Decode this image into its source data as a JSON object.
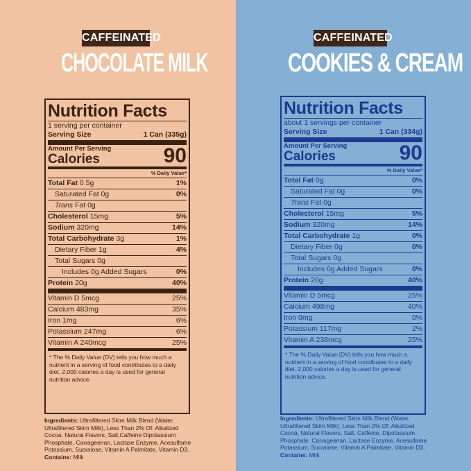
{
  "left": {
    "badge": "CAFFEINATED",
    "product": "CHOCOLATE MILK",
    "colors": {
      "background": "#f1c3a2",
      "text": "#3b2314"
    },
    "title": "Nutrition Facts",
    "servings_per_container": "1 serving per container",
    "serving_size_label": "Serving Size",
    "serving_size_value": "1 Can (335g)",
    "amount_per_serving": "Amount Per Serving",
    "calories_label": "Calories",
    "calories_value": "90",
    "dv_header": "% Daily Value*",
    "rows": [
      {
        "name": "Total Fat",
        "amount": "0.5g",
        "dv": "1%"
      },
      {
        "name": "Saturated Fat",
        "amount": "0g",
        "dv": "0%"
      },
      {
        "name": "Trans",
        "name_suffix": "Fat",
        "amount": "0g",
        "dv": ""
      },
      {
        "name": "Cholesterol",
        "amount": "15mg",
        "dv": "5%"
      },
      {
        "name": "Sodium",
        "amount": "320mg",
        "dv": "14%"
      },
      {
        "name": "Total Carbohydrate",
        "amount": "3g",
        "dv": "1%"
      },
      {
        "name": "Dietary Fiber",
        "amount": "1g",
        "dv": "4%"
      },
      {
        "name": "Total Sugars",
        "amount": "0g",
        "dv": ""
      },
      {
        "name": "Includes 0g Added Sugars",
        "amount": "",
        "dv": "0%"
      },
      {
        "name": "Protein",
        "amount": "20g",
        "dv": "40%"
      }
    ],
    "vitamins": [
      {
        "text": "Vitamin D 5mcg",
        "dv": "25%"
      },
      {
        "text": "Calcium 483mg",
        "dv": "35%"
      },
      {
        "text": "Iron 1mg",
        "dv": "6%"
      },
      {
        "text": "Potassium 247mg",
        "dv": "6%"
      },
      {
        "text": "Vitamin A 240mcg",
        "dv": "25%"
      }
    ],
    "footnote": "* The % Daily Value (DV) tells you how much a nutrient in a serving of food contributes to a daily diet. 2,000 calories a day is used for general nutrition advice.",
    "ingredients_label": "Ingredients:",
    "ingredients_text": "Ultrafiltered Skim Milk Blend (Water, Ultrafiltered Skim Milk), Less Than 2% Of: Alkalized Cocoa, Natural Flavors, Salt,Caffeine Dipotassium Phosphate, Carrageenan, Lactase Enzyme, Acesulfame Potassium, Sucralose, Vitamin A Palmitate, Vitamin D3.",
    "contains_label": "Contains:",
    "contains_text": "Milk"
  },
  "right": {
    "badge": "CAFFEINATED",
    "product": "COOKIES & CREAM",
    "colors": {
      "background": "#84b0d6",
      "text": "#1d3a8f"
    },
    "title": "Nutrition Facts",
    "servings_per_container": "about 1 servings per container",
    "serving_size_label": "Serving Size",
    "serving_size_value": "1 Can (334g)",
    "amount_per_serving": "Amount Per Serving",
    "calories_label": "Calories",
    "calories_value": "90",
    "dv_header": "% Daily Value*",
    "rows": [
      {
        "name": "Total Fat",
        "amount": "0g",
        "dv": "0%"
      },
      {
        "name": "Saturated Fat",
        "amount": "0g",
        "dv": "0%"
      },
      {
        "name": "Trans",
        "name_suffix": "Fat",
        "amount": "0g",
        "dv": ""
      },
      {
        "name": "Cholesterol",
        "amount": "15mg",
        "dv": "5%"
      },
      {
        "name": "Sodium",
        "amount": "320mg",
        "dv": "14%"
      },
      {
        "name": "Total Carbohydrate",
        "amount": "1g",
        "dv": "0%"
      },
      {
        "name": "Dietary Fiber",
        "amount": "0g",
        "dv": "0%"
      },
      {
        "name": "Total Sugars",
        "amount": "0g",
        "dv": ""
      },
      {
        "name": "Includes 0g Added Sugars",
        "amount": "",
        "dv": "0%"
      },
      {
        "name": "Protein",
        "amount": "20g",
        "dv": "40%"
      }
    ],
    "vitamins": [
      {
        "text": "Vitamin D 5mcg",
        "dv": "25%"
      },
      {
        "text": "Calcium 498mg",
        "dv": "40%"
      },
      {
        "text": "Iron 0mg",
        "dv": "0%"
      },
      {
        "text": "Potassium 117mg",
        "dv": "2%"
      },
      {
        "text": "Vitamin A 238mcg",
        "dv": "25%"
      }
    ],
    "footnote": "* The % Daily Value (DV) tells you how much a nutrient in a serving of food contributes to a daily diet. 2,000 calories a day is used for general nutrition advice.",
    "ingredients_label": "Ingredients:",
    "ingredients_text": "Ultrafiltered Skim Milk Blend (Water, Ultrafiltered Skim Milk), Less Than 2% Of: Alkalized Cocoa, Natural Flavors, Salt, Caffeine, Dipotassium Phosphate, Carrageenan, Lactase Enzyme, Acesulfame Potassium, Sucralose, Vitamin A Palmitate, Vitamin D3.",
    "contains_label": "Contains:",
    "contains_text": "Milk"
  }
}
